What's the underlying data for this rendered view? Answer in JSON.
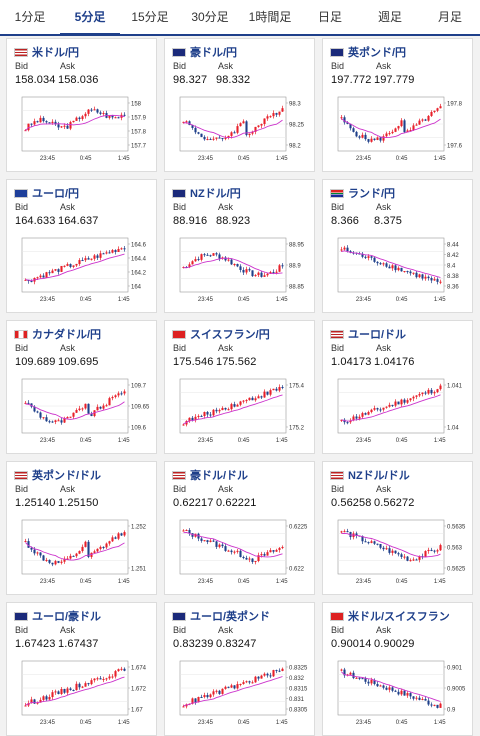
{
  "tabs": [
    "1分足",
    "5分足",
    "15分足",
    "30分足",
    "1時間足",
    "日足",
    "週足",
    "月足"
  ],
  "active_tab": 1,
  "bid_label": "Bid",
  "ask_label": "Ask",
  "colors": {
    "up": "#e8202a",
    "down": "#1e3f8a",
    "ma": "#cc33cc",
    "accent": "#1e3f8a"
  },
  "pairs": [
    {
      "name": "米ドル/円",
      "flag": "us-flag-icon",
      "bid": "158.034",
      "ask": "158.036",
      "yticks": [
        "158",
        "157.9",
        "157.8",
        "157.7"
      ],
      "xticks": [
        "23:45",
        "0:45",
        "1:45"
      ],
      "chart_data": {
        "type": "candlestick",
        "trend": "mixed-up",
        "ylim": [
          157.65,
          158.05
        ]
      }
    },
    {
      "name": "豪ドル/円",
      "flag": "au-flag-icon",
      "bid": "98.327",
      "ask": "98.332",
      "yticks": [
        "98.3",
        "98.25",
        "98.2"
      ],
      "xticks": [
        "23:45",
        "0:45",
        "1:45"
      ],
      "chart_data": {
        "type": "candlestick",
        "trend": "dip-recover",
        "ylim": [
          98.18,
          98.33
        ]
      }
    },
    {
      "name": "英ポンド/円",
      "flag": "gb-flag-icon",
      "bid": "197.772",
      "ask": "197.779",
      "yticks": [
        "197.8",
        "197.6"
      ],
      "xticks": [
        "23:45",
        "0:45",
        "1:45"
      ],
      "chart_data": {
        "type": "candlestick",
        "trend": "dip-recover",
        "ylim": [
          197.4,
          197.85
        ]
      }
    },
    {
      "name": "ユーロ/円",
      "flag": "eu-flag-icon",
      "bid": "164.633",
      "ask": "164.637",
      "yticks": [
        "164.6",
        "164.4",
        "164.2",
        "164"
      ],
      "xticks": [
        "23:45",
        "0:45",
        "1:45"
      ],
      "chart_data": {
        "type": "candlestick",
        "trend": "up",
        "ylim": [
          163.95,
          164.65
        ]
      }
    },
    {
      "name": "NZドル/円",
      "flag": "nz-flag-icon",
      "bid": "88.916",
      "ask": "88.923",
      "yticks": [
        "88.95",
        "88.9",
        "88.85"
      ],
      "xticks": [
        "23:45",
        "0:45",
        "1:45"
      ],
      "chart_data": {
        "type": "candlestick",
        "trend": "mixed",
        "ylim": [
          88.83,
          88.96
        ]
      }
    },
    {
      "name": "ランド/円",
      "flag": "za-flag-icon",
      "bid": "8.366",
      "ask": "8.375",
      "yticks": [
        "8.44",
        "8.42",
        "8.4",
        "8.38",
        "8.36"
      ],
      "xticks": [
        "23:45",
        "0:45",
        "1:45"
      ],
      "chart_data": {
        "type": "candlestick",
        "trend": "down",
        "ylim": [
          8.355,
          8.445
        ]
      }
    },
    {
      "name": "カナダドル/円",
      "flag": "ca-flag-icon",
      "bid": "109.689",
      "ask": "109.695",
      "yticks": [
        "109.7",
        "109.65",
        "109.6"
      ],
      "xticks": [
        "23:45",
        "0:45",
        "1:45"
      ],
      "chart_data": {
        "type": "candlestick",
        "trend": "dip-recover",
        "ylim": [
          109.55,
          109.72
        ]
      }
    },
    {
      "name": "スイスフラン/円",
      "flag": "ch-flag-icon",
      "bid": "175.546",
      "ask": "175.562",
      "yticks": [
        "175.4",
        "175.2"
      ],
      "xticks": [
        "23:45",
        "0:45",
        "1:45"
      ],
      "chart_data": {
        "type": "candlestick",
        "trend": "up",
        "ylim": [
          175.1,
          175.6
        ]
      }
    },
    {
      "name": "ユーロ/ドル",
      "flag": "us-flag-icon",
      "bid": "1.04173",
      "ask": "1.04176",
      "yticks": [
        "1.041",
        "1.04"
      ],
      "xticks": [
        "23:45",
        "0:45",
        "1:45"
      ],
      "chart_data": {
        "type": "candlestick",
        "trend": "up",
        "ylim": [
          1.0395,
          1.042
        ]
      }
    },
    {
      "name": "英ポンド/ドル",
      "flag": "us-flag-icon",
      "bid": "1.25140",
      "ask": "1.25150",
      "yticks": [
        "1.252",
        "1.251"
      ],
      "xticks": [
        "23:45",
        "0:45",
        "1:45"
      ],
      "chart_data": {
        "type": "candlestick",
        "trend": "dip-recover",
        "ylim": [
          1.2503,
          1.2524
        ]
      }
    },
    {
      "name": "豪ドル/ドル",
      "flag": "us-flag-icon",
      "bid": "0.62217",
      "ask": "0.62221",
      "yticks": [
        "0.6225",
        "0.622"
      ],
      "xticks": [
        "23:45",
        "0:45",
        "1:45"
      ],
      "chart_data": {
        "type": "candlestick",
        "trend": "down-recover",
        "ylim": [
          0.6215,
          0.6229
        ]
      }
    },
    {
      "name": "NZドル/ドル",
      "flag": "us-flag-icon",
      "bid": "0.56258",
      "ask": "0.56272",
      "yticks": [
        "0.5635",
        "0.563",
        "0.5625"
      ],
      "xticks": [
        "23:45",
        "0:45",
        "1:45"
      ],
      "chart_data": {
        "type": "candlestick",
        "trend": "down-recover",
        "ylim": [
          0.5622,
          0.5637
        ]
      }
    },
    {
      "name": "ユーロ/豪ドル",
      "flag": "au-flag-icon",
      "bid": "1.67423",
      "ask": "1.67437",
      "yticks": [
        "1.674",
        "1.672",
        "1.67"
      ],
      "xticks": [
        "23:45",
        "0:45",
        "1:45"
      ],
      "chart_data": {
        "type": "candlestick",
        "trend": "up",
        "ylim": [
          1.6695,
          1.6748
        ]
      }
    },
    {
      "name": "ユーロ/英ポンド",
      "flag": "gb-flag-icon",
      "bid": "0.83239",
      "ask": "0.83247",
      "yticks": [
        "0.8325",
        "0.832",
        "0.8315",
        "0.831",
        "0.8305"
      ],
      "xticks": [
        "23:45",
        "0:45",
        "1:45"
      ],
      "chart_data": {
        "type": "candlestick",
        "trend": "up",
        "ylim": [
          0.8304,
          0.8326
        ]
      }
    },
    {
      "name": "米ドル/スイスフラン",
      "flag": "ch-flag-icon",
      "bid": "0.90014",
      "ask": "0.90029",
      "yticks": [
        "0.901",
        "0.9005",
        "0.9"
      ],
      "xticks": [
        "23:45",
        "0:45",
        "1:45"
      ],
      "chart_data": {
        "type": "candlestick",
        "trend": "down",
        "ylim": [
          0.8998,
          0.9012
        ]
      }
    }
  ]
}
